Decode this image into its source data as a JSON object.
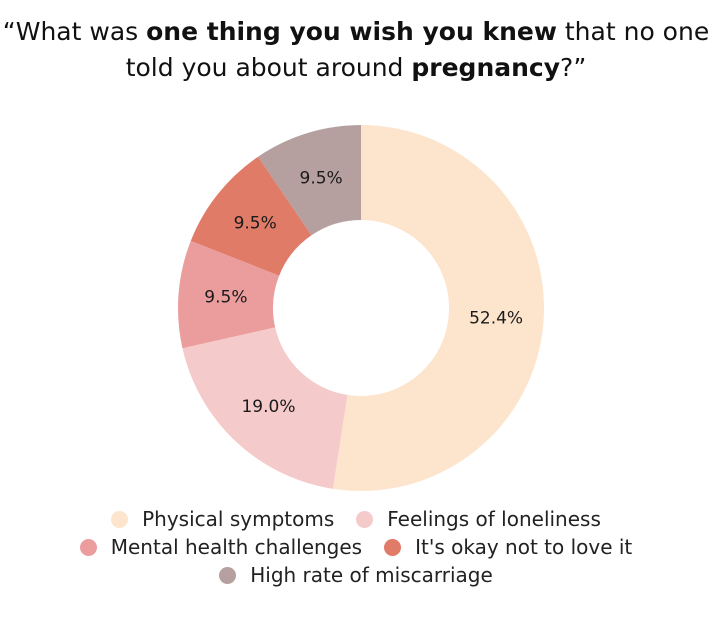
{
  "title": {
    "open_quote": "“",
    "part1": "What was ",
    "bold1": "one thing you wish you knew",
    "part2": " that no one told you about around ",
    "bold2": "pregnancy",
    "part3": "?”"
  },
  "chart_data": {
    "type": "pie",
    "donut": true,
    "title": "“What was one thing you wish you knew that no one told you about around pregnancy?”",
    "categories": [
      "Physical symptoms",
      "Feelings of loneliness",
      "Mental health challenges",
      "It's okay not to love it",
      "High rate of miscarriage"
    ],
    "values": [
      52.4,
      19.0,
      9.5,
      9.5,
      9.5
    ],
    "labels": [
      "52.4%",
      "19.0%",
      "9.5%",
      "9.5%",
      "9.5%"
    ],
    "colors": [
      "#fde5cd",
      "#f5cacb",
      "#eb9d9e",
      "#e07b68",
      "#b5a09f"
    ],
    "legend_position": "bottom"
  }
}
